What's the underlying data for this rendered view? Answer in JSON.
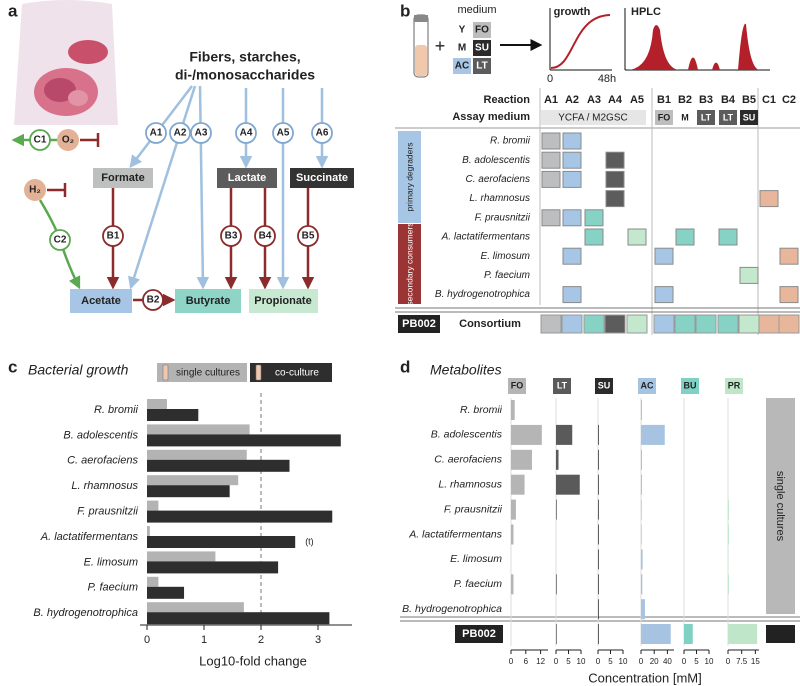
{
  "panel_labels": [
    "a",
    "b",
    "c",
    "d"
  ],
  "diagram": {
    "source": [
      "Fibers, starches,",
      "di-/monosaccharides"
    ],
    "metabolites": {
      "formate": "Formate",
      "lactate": "Lactate",
      "succinate": "Succinate",
      "acetate": "Acetate",
      "butyrate": "Butyrate",
      "propionate": "Propionate"
    },
    "reactions": [
      "A1",
      "A2",
      "A3",
      "A4",
      "A5",
      "A6",
      "B1",
      "B2",
      "B3",
      "B4",
      "B5",
      "C1",
      "C2"
    ],
    "gases": [
      "O₂",
      "H₂"
    ]
  },
  "assay": {
    "medium_label": "medium",
    "plus": "+",
    "media": [
      {
        "name": "Y",
        "color": "#ffffff"
      },
      {
        "name": "FO",
        "color": "#bdbdbd"
      },
      {
        "name": "M",
        "color": "#ffffff"
      },
      {
        "name": "SU",
        "color": "#2b2b2b"
      },
      {
        "name": "AC",
        "color": "#a7c5e4"
      },
      {
        "name": "LT",
        "color": "#5c5c5c"
      }
    ],
    "growth": "growth",
    "growth_axis": [
      "0",
      "48h"
    ],
    "hplc": "HPLC",
    "reaction_label": "Reaction",
    "assay_medium_label": "Assay medium",
    "columns": [
      "A1",
      "A2",
      "A3",
      "A4",
      "A5",
      "B1",
      "B2",
      "B3",
      "B4",
      "B5",
      "C1",
      "C2"
    ],
    "column_colors": [
      "#bcbec0",
      "#a7c5e4",
      "#86d3c6",
      "#5c5c5c",
      "#c3e8cd",
      "#a7c5e4",
      "#86d3c6",
      "#86d3c6",
      "#86d3c6",
      "#c3e8cd",
      "#e8b79b",
      "#e8b79b"
    ],
    "a_medium": "YCFA / M2GSC",
    "b_media": [
      {
        "name": "FO",
        "color": "#bdbdbd"
      },
      {
        "name": "M",
        "color": "#ffffff"
      },
      {
        "name": "LT",
        "color": "#5c5c5c"
      },
      {
        "name": "LT",
        "color": "#5c5c5c"
      },
      {
        "name": "SU",
        "color": "#2b2b2b"
      }
    ],
    "groups": [
      {
        "label": "primary degraders",
        "color": "#a7c5e4"
      },
      {
        "label": "secondary consumers",
        "color": "#9b3535"
      }
    ],
    "rows": [
      {
        "label": "R. bromii",
        "cells": [
          true,
          true,
          false,
          false,
          false,
          false,
          false,
          false,
          false,
          false,
          false,
          false
        ]
      },
      {
        "label": "B. adolescentis",
        "cells": [
          true,
          true,
          false,
          true,
          false,
          false,
          false,
          false,
          false,
          false,
          false,
          false
        ]
      },
      {
        "label": "C. aerofaciens",
        "cells": [
          true,
          true,
          false,
          true,
          false,
          false,
          false,
          false,
          false,
          false,
          false,
          false
        ]
      },
      {
        "label": "L. rhamnosus",
        "cells": [
          false,
          false,
          false,
          true,
          false,
          false,
          false,
          false,
          false,
          false,
          true,
          false
        ]
      },
      {
        "label": "F. prausnitzii",
        "cells": [
          true,
          true,
          true,
          false,
          false,
          false,
          false,
          false,
          false,
          false,
          false,
          false
        ]
      },
      {
        "label": "A. lactatifermentans",
        "cells": [
          false,
          false,
          true,
          false,
          true,
          false,
          true,
          false,
          true,
          false,
          false,
          false
        ]
      },
      {
        "label": "E. limosum",
        "cells": [
          false,
          true,
          false,
          false,
          false,
          true,
          false,
          false,
          false,
          false,
          false,
          true
        ]
      },
      {
        "label": "P. faecium",
        "cells": [
          false,
          false,
          false,
          false,
          false,
          false,
          false,
          false,
          false,
          true,
          false,
          false
        ]
      },
      {
        "label": "B. hydrogenotrophica",
        "cells": [
          false,
          true,
          false,
          false,
          false,
          true,
          false,
          false,
          false,
          false,
          false,
          true
        ]
      }
    ],
    "consortium": {
      "id": "PB002",
      "label": "Consortium",
      "cells": [
        true,
        true,
        true,
        true,
        true,
        true,
        true,
        true,
        true,
        true,
        true,
        true
      ]
    }
  },
  "chart_data": [
    {
      "type": "bar",
      "orientation": "horizontal",
      "title": "Bacterial growth",
      "x_label": "Log10-fold change",
      "categories": [
        "R. bromii",
        "B. adolescentis",
        "C. aerofaciens",
        "L. rhamnosus",
        "F. prausnitzii",
        "A. lactatifermentans",
        "E. limosum",
        "P. faecium",
        "B. hydrogenotrophica"
      ],
      "series": [
        {
          "name": "single cultures",
          "color": "#b3b3b3",
          "values": [
            0.35,
            1.8,
            1.75,
            1.6,
            0.2,
            0.05,
            1.2,
            0.2,
            1.7
          ]
        },
        {
          "name": "co-culture",
          "color": "#2e2e2e",
          "values": [
            0.9,
            3.4,
            2.5,
            1.45,
            3.25,
            2.6,
            2.3,
            0.65,
            3.2
          ]
        }
      ],
      "xlim": [
        0,
        3.5
      ],
      "xticks": [
        0,
        1,
        2,
        3
      ],
      "reference_line": 2,
      "annotation": "(t)"
    },
    {
      "type": "bar-panels",
      "title": "Metabolites",
      "x_label": "Concentration [mM]",
      "single_label": "single cultures",
      "categories": [
        "R. bromii",
        "B. adolescentis",
        "C. aerofaciens",
        "L. rhamnosus",
        "F. prausnitzii",
        "A. lactatifermentans",
        "E. limosum",
        "P. faecium",
        "B. hydrogenotrophica",
        "PB002"
      ],
      "panels": [
        {
          "name": "FO",
          "color": "#b5b5b5",
          "xlim": [
            0,
            15
          ],
          "xticks": [
            0,
            6,
            12
          ],
          "values": [
            1.5,
            12.5,
            8.5,
            5.5,
            2,
            1,
            0,
            1,
            0,
            0
          ]
        },
        {
          "name": "LT",
          "color": "#5a5a5a",
          "xlim": [
            0,
            10
          ],
          "xticks": [
            0,
            5,
            10
          ],
          "values": [
            0,
            6.5,
            1,
            9.5,
            0.3,
            0,
            0,
            0.3,
            0,
            0.3
          ]
        },
        {
          "name": "SU",
          "color": "#2b2b2b",
          "xlim": [
            0,
            10
          ],
          "xticks": [
            0,
            5,
            10
          ],
          "values": [
            0,
            0.3,
            0.3,
            0.3,
            0.3,
            0.3,
            0.3,
            0.3,
            0.3,
            0.3
          ]
        },
        {
          "name": "AC",
          "color": "#a6c3e2",
          "xlim": [
            0,
            50
          ],
          "xticks": [
            0,
            20,
            40
          ],
          "values": [
            1.5,
            36,
            1.5,
            1.5,
            1,
            1,
            2.5,
            2,
            6,
            45
          ]
        },
        {
          "name": "BU",
          "color": "#7fd1c3",
          "xlim": [
            0,
            10
          ],
          "xticks": [
            0,
            5,
            10
          ],
          "values": [
            0,
            0,
            0,
            0,
            0,
            0,
            0,
            0,
            0,
            3.5
          ]
        },
        {
          "name": "PR",
          "color": "#bfe6c9",
          "xlim": [
            0,
            17
          ],
          "xticks": [
            0,
            7.5,
            15
          ],
          "values": [
            0,
            0,
            0,
            0,
            0.5,
            0.5,
            0.3,
            0.5,
            0,
            16
          ]
        }
      ]
    }
  ]
}
